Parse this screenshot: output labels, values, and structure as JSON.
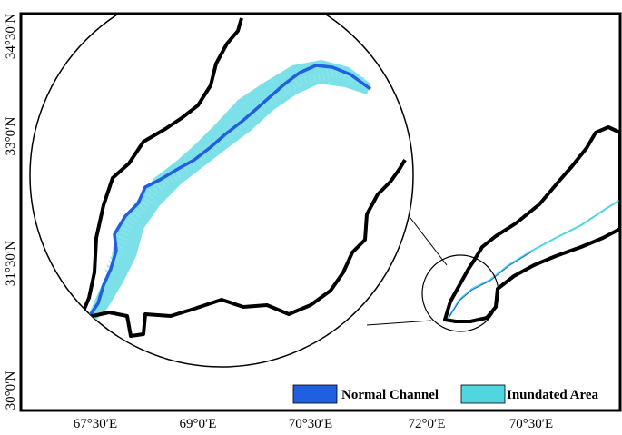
{
  "map": {
    "lat_labels": [
      "34°30′N",
      "33°0′N",
      "31°30′N",
      "30°0′N"
    ],
    "lon_labels": [
      "67°30′E",
      "69°0′E",
      "70°30′E",
      "72°0′E",
      "70°30′E"
    ],
    "legend": [
      {
        "label": "Normal Channel",
        "color": "#1f5fe0"
      },
      {
        "label": "Inundated Area",
        "color": "#4fd6df"
      }
    ]
  }
}
